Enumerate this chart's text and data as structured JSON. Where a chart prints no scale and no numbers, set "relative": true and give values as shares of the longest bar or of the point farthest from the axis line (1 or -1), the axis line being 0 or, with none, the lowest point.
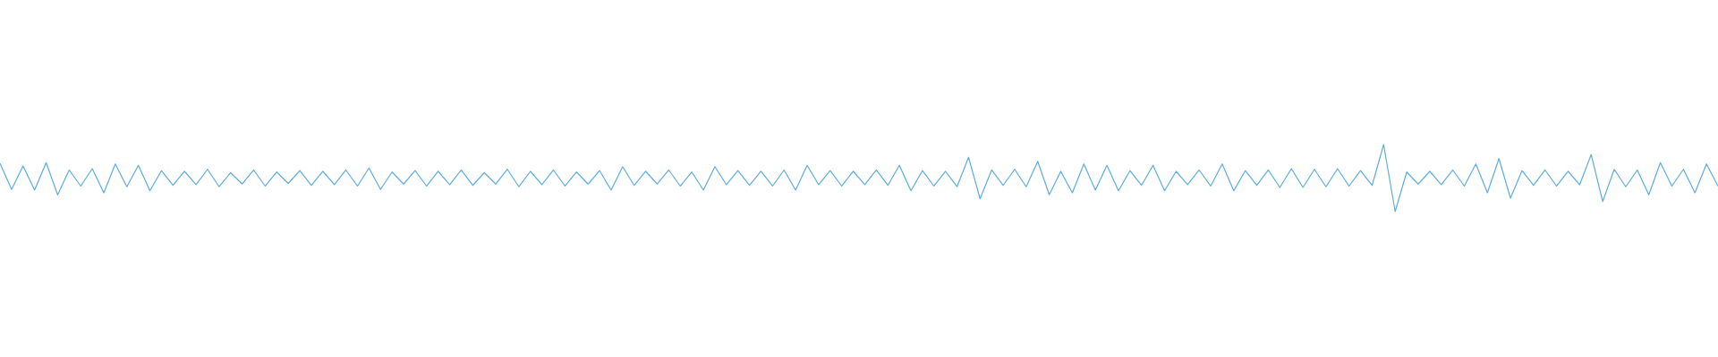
{
  "chart_data": {
    "type": "line",
    "relative": true,
    "categories": [
      null,
      null,
      null,
      null,
      null,
      null,
      null,
      null,
      null,
      null,
      null,
      null,
      null,
      null,
      null,
      null,
      null,
      null,
      null,
      null,
      null,
      null,
      null,
      null,
      null,
      null,
      null,
      null,
      null,
      null,
      null,
      null,
      null,
      null,
      null,
      null,
      null,
      null,
      null,
      null,
      null,
      null,
      null,
      null,
      null,
      null,
      null,
      null,
      null,
      null,
      null,
      null,
      null,
      null,
      null,
      null,
      null,
      null,
      null,
      null,
      null,
      null,
      null,
      null,
      null,
      null,
      null,
      null,
      null,
      null,
      null,
      null,
      null,
      null,
      null,
      null,
      null,
      null,
      null,
      null,
      null,
      null,
      null,
      null,
      null,
      null,
      null,
      null,
      null,
      null,
      null,
      null,
      null,
      null,
      null,
      null,
      null,
      null,
      null,
      null,
      null,
      null,
      null,
      null,
      null,
      null,
      null,
      null,
      null,
      null,
      null,
      null,
      null,
      null,
      null,
      null,
      null,
      null,
      null,
      null,
      null,
      null,
      null,
      null,
      null,
      null,
      null,
      null,
      null,
      null,
      null,
      null,
      null,
      null,
      null,
      null,
      null,
      null,
      null,
      null,
      null,
      null,
      null,
      null,
      null,
      null,
      null,
      null,
      null,
      null
    ],
    "series": [
      {
        "color": "#5dade2",
        "values": [
          0.72,
          0.33,
          0.68,
          0.32,
          0.73,
          0.25,
          0.62,
          0.38,
          0.64,
          0.28,
          0.71,
          0.37,
          0.69,
          0.31,
          0.61,
          0.39,
          0.6,
          0.4,
          0.63,
          0.37,
          0.58,
          0.41,
          0.62,
          0.38,
          0.59,
          0.42,
          0.61,
          0.39,
          0.6,
          0.4,
          0.62,
          0.38,
          0.65,
          0.33,
          0.59,
          0.41,
          0.61,
          0.38,
          0.6,
          0.4,
          0.62,
          0.39,
          0.58,
          0.41,
          0.63,
          0.37,
          0.6,
          0.4,
          0.62,
          0.38,
          0.59,
          0.41,
          0.61,
          0.32,
          0.67,
          0.39,
          0.6,
          0.41,
          0.62,
          0.38,
          0.59,
          0.32,
          0.67,
          0.4,
          0.61,
          0.39,
          0.6,
          0.38,
          0.62,
          0.32,
          0.69,
          0.4,
          0.61,
          0.38,
          0.6,
          0.4,
          0.62,
          0.39,
          0.69,
          0.31,
          0.61,
          0.38,
          0.6,
          0.37,
          0.81,
          0.19,
          0.62,
          0.39,
          0.63,
          0.37,
          0.75,
          0.25,
          0.6,
          0.28,
          0.71,
          0.32,
          0.69,
          0.31,
          0.61,
          0.39,
          0.69,
          0.31,
          0.6,
          0.4,
          0.62,
          0.38,
          0.71,
          0.31,
          0.61,
          0.39,
          0.62,
          0.36,
          0.64,
          0.36,
          0.63,
          0.37,
          0.64,
          0.38,
          0.61,
          0.39,
          1.0,
          0.0,
          0.59,
          0.41,
          0.6,
          0.4,
          0.62,
          0.38,
          0.71,
          0.28,
          0.79,
          0.2,
          0.61,
          0.39,
          0.62,
          0.38,
          0.6,
          0.4,
          0.85,
          0.15,
          0.63,
          0.37,
          0.62,
          0.25,
          0.73,
          0.38,
          0.63,
          0.28,
          0.71,
          0.38
        ]
      }
    ]
  }
}
